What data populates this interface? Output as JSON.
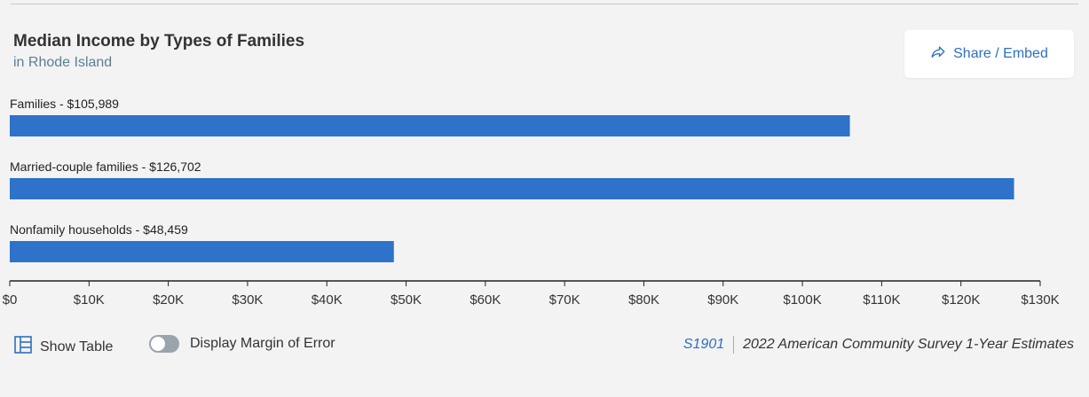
{
  "title": "Median Income by Types of Families",
  "subtitle": "in Rhode Island",
  "share_label": "Share / Embed",
  "footer": {
    "show_table_label": "Show Table",
    "moe_label": "Display Margin of Error",
    "source_code": "S1901",
    "source_text": "2022 American Community Survey 1-Year Estimates"
  },
  "colors": {
    "bar": "#2e72c9",
    "accent": "#2e6fbf"
  },
  "chart_data": {
    "type": "bar",
    "orientation": "horizontal",
    "title": "Median Income by Types of Families",
    "subtitle": "in Rhode Island",
    "categories": [
      "Families",
      "Married-couple families",
      "Nonfamily households"
    ],
    "values": [
      105989,
      126702,
      48459
    ],
    "data_labels": [
      "Families - $105,989",
      "Married-couple families - $126,702",
      "Nonfamily households - $48,459"
    ],
    "xlim": [
      0,
      130000
    ],
    "xticks": [
      0,
      10000,
      20000,
      30000,
      40000,
      50000,
      60000,
      70000,
      80000,
      90000,
      100000,
      110000,
      120000,
      130000
    ],
    "xtick_labels": [
      "$0",
      "$10K",
      "$20K",
      "$30K",
      "$40K",
      "$50K",
      "$60K",
      "$70K",
      "$80K",
      "$90K",
      "$100K",
      "$110K",
      "$120K",
      "$130K"
    ],
    "grid": false,
    "legend": "none"
  }
}
